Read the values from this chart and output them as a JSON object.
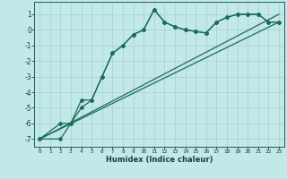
{
  "xlabel": "Humidex (Indice chaleur)",
  "background_color": "#c2e8e8",
  "grid_color": "#aad4d4",
  "line_color": "#1a6b5a",
  "xlim": [
    -0.5,
    23.5
  ],
  "ylim": [
    -7.5,
    1.8
  ],
  "xticks": [
    0,
    1,
    2,
    3,
    4,
    5,
    6,
    7,
    8,
    9,
    10,
    11,
    12,
    13,
    14,
    15,
    16,
    17,
    18,
    19,
    20,
    21,
    22,
    23
  ],
  "yticks": [
    -7,
    -6,
    -5,
    -4,
    -3,
    -2,
    -1,
    0,
    1
  ],
  "line1_x": [
    0,
    2,
    3,
    4,
    5,
    6,
    7,
    8,
    9,
    10,
    11,
    12,
    13,
    14,
    15,
    16,
    17,
    18,
    19,
    20,
    21,
    22,
    23
  ],
  "line1_y": [
    -7.0,
    -6.0,
    -6.0,
    -4.5,
    -4.5,
    -3.0,
    -1.5,
    -1.0,
    -0.3,
    0.0,
    1.3,
    0.5,
    0.2,
    0.0,
    -0.1,
    -0.2,
    0.5,
    0.8,
    1.0,
    1.0,
    1.0,
    0.5,
    0.5
  ],
  "line2_x": [
    0,
    2,
    3,
    4,
    5,
    6,
    7,
    8,
    9,
    10,
    11,
    12,
    13,
    14,
    15,
    16,
    17,
    18,
    19,
    20,
    21,
    22,
    23
  ],
  "line2_y": [
    -7.0,
    -7.0,
    -6.0,
    -5.0,
    -4.5,
    -3.0,
    -1.5,
    -1.0,
    -0.3,
    0.0,
    1.3,
    0.5,
    0.2,
    0.0,
    -0.1,
    -0.2,
    0.5,
    0.8,
    1.0,
    1.0,
    1.0,
    0.5,
    0.5
  ],
  "line3_x": [
    0,
    23
  ],
  "line3_y": [
    -7.0,
    1.0
  ],
  "line4_x": [
    0,
    23
  ],
  "line4_y": [
    -7.0,
    0.5
  ]
}
